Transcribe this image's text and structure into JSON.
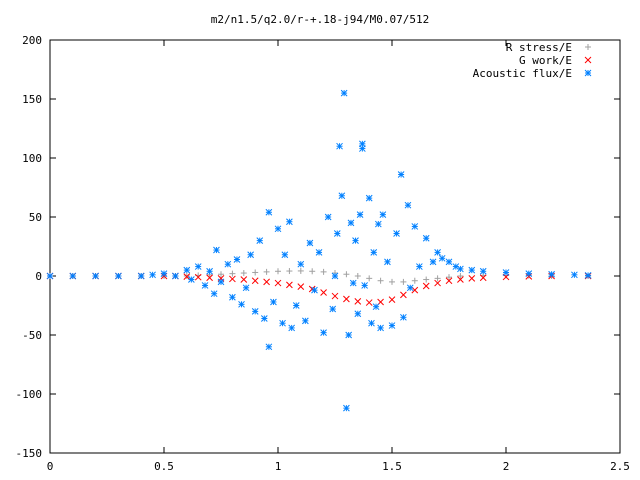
{
  "chart_data": {
    "type": "scatter",
    "title": "m2/n1.5/q2.0/r-+.18-j94/M0.07/512",
    "xlabel": "",
    "ylabel": "",
    "xlim": [
      0,
      2.5
    ],
    "ylim": [
      -150,
      200
    ],
    "xticks": [
      0,
      0.5,
      1,
      1.5,
      2,
      2.5
    ],
    "yticks": [
      -150,
      -100,
      -50,
      0,
      50,
      100,
      150,
      200
    ],
    "xtick_labels": [
      "0",
      "0.5",
      "1",
      "1.5",
      "2",
      "2.5"
    ],
    "ytick_labels": [
      "-150",
      "-100",
      "-50",
      "0",
      "50",
      "100",
      "150",
      "200"
    ],
    "grid": false,
    "legend_position": "top-right",
    "series": [
      {
        "name": "R stress/E",
        "marker": "+",
        "color": "#a0a0a0",
        "points": [
          [
            0.0,
            0
          ],
          [
            0.1,
            0
          ],
          [
            0.2,
            0
          ],
          [
            0.3,
            0
          ],
          [
            0.4,
            0
          ],
          [
            0.5,
            0
          ],
          [
            0.55,
            0
          ],
          [
            0.6,
            0
          ],
          [
            0.65,
            0.5
          ],
          [
            0.7,
            1
          ],
          [
            0.75,
            1.5
          ],
          [
            0.8,
            2
          ],
          [
            0.85,
            2.5
          ],
          [
            0.9,
            3
          ],
          [
            0.95,
            3.5
          ],
          [
            1.0,
            4
          ],
          [
            1.05,
            4.2
          ],
          [
            1.1,
            4.3
          ],
          [
            1.15,
            4
          ],
          [
            1.2,
            3.5
          ],
          [
            1.25,
            2.5
          ],
          [
            1.3,
            1.5
          ],
          [
            1.35,
            0
          ],
          [
            1.4,
            -2
          ],
          [
            1.45,
            -4
          ],
          [
            1.5,
            -5
          ],
          [
            1.55,
            -5
          ],
          [
            1.6,
            -4
          ],
          [
            1.65,
            -3
          ],
          [
            1.7,
            -2
          ],
          [
            1.75,
            -1
          ],
          [
            1.8,
            0
          ],
          [
            1.9,
            0.5
          ],
          [
            2.0,
            0.5
          ],
          [
            2.1,
            0.3
          ],
          [
            2.2,
            0
          ],
          [
            2.36,
            0
          ]
        ]
      },
      {
        "name": "G work/E",
        "marker": "x",
        "color": "#ff0000",
        "points": [
          [
            0.0,
            0
          ],
          [
            0.1,
            0
          ],
          [
            0.2,
            0
          ],
          [
            0.3,
            0
          ],
          [
            0.4,
            0
          ],
          [
            0.5,
            0
          ],
          [
            0.55,
            0
          ],
          [
            0.6,
            -0.5
          ],
          [
            0.65,
            -1
          ],
          [
            0.7,
            -1.5
          ],
          [
            0.75,
            -2
          ],
          [
            0.8,
            -2.5
          ],
          [
            0.85,
            -3
          ],
          [
            0.9,
            -4
          ],
          [
            0.95,
            -5
          ],
          [
            1.0,
            -6
          ],
          [
            1.05,
            -7.5
          ],
          [
            1.1,
            -9
          ],
          [
            1.15,
            -11
          ],
          [
            1.2,
            -14
          ],
          [
            1.25,
            -17
          ],
          [
            1.3,
            -19.5
          ],
          [
            1.35,
            -21.5
          ],
          [
            1.4,
            -22.5
          ],
          [
            1.45,
            -22
          ],
          [
            1.5,
            -20
          ],
          [
            1.55,
            -16
          ],
          [
            1.6,
            -12
          ],
          [
            1.65,
            -8.5
          ],
          [
            1.7,
            -6
          ],
          [
            1.75,
            -4
          ],
          [
            1.8,
            -3
          ],
          [
            1.85,
            -2
          ],
          [
            1.9,
            -1.5
          ],
          [
            2.0,
            -0.8
          ],
          [
            2.1,
            -0.3
          ],
          [
            2.2,
            0
          ],
          [
            2.36,
            0
          ]
        ]
      },
      {
        "name": "Acoustic flux/E",
        "marker": "*",
        "color": "#0080ff",
        "points": [
          [
            0.0,
            0
          ],
          [
            0.1,
            0
          ],
          [
            0.2,
            0
          ],
          [
            0.3,
            0
          ],
          [
            0.4,
            0
          ],
          [
            0.45,
            1
          ],
          [
            0.5,
            2
          ],
          [
            0.55,
            0
          ],
          [
            0.6,
            5
          ],
          [
            0.62,
            -3
          ],
          [
            0.65,
            8
          ],
          [
            0.68,
            -8
          ],
          [
            0.7,
            4
          ],
          [
            0.72,
            -15
          ],
          [
            0.73,
            22
          ],
          [
            0.75,
            -5
          ],
          [
            0.78,
            10
          ],
          [
            0.8,
            -18
          ],
          [
            0.82,
            14
          ],
          [
            0.84,
            -24
          ],
          [
            0.86,
            -10
          ],
          [
            0.88,
            18
          ],
          [
            0.9,
            -30
          ],
          [
            0.92,
            30
          ],
          [
            0.94,
            -36
          ],
          [
            0.96,
            -60
          ],
          [
            0.96,
            54
          ],
          [
            0.98,
            -22
          ],
          [
            1.0,
            40
          ],
          [
            1.02,
            -40
          ],
          [
            1.03,
            18
          ],
          [
            1.05,
            46
          ],
          [
            1.06,
            -44
          ],
          [
            1.08,
            -25
          ],
          [
            1.1,
            10
          ],
          [
            1.12,
            -38
          ],
          [
            1.14,
            28
          ],
          [
            1.16,
            -12
          ],
          [
            1.18,
            20
          ],
          [
            1.2,
            -48
          ],
          [
            1.22,
            50
          ],
          [
            1.24,
            -28
          ],
          [
            1.25,
            0
          ],
          [
            1.26,
            36
          ],
          [
            1.27,
            110
          ],
          [
            1.28,
            68
          ],
          [
            1.29,
            155
          ],
          [
            1.3,
            -112
          ],
          [
            1.31,
            -50
          ],
          [
            1.32,
            45
          ],
          [
            1.33,
            -6
          ],
          [
            1.34,
            30
          ],
          [
            1.35,
            -32
          ],
          [
            1.36,
            52
          ],
          [
            1.37,
            112
          ],
          [
            1.37,
            108
          ],
          [
            1.38,
            -8
          ],
          [
            1.4,
            66
          ],
          [
            1.41,
            -40
          ],
          [
            1.42,
            20
          ],
          [
            1.43,
            -26
          ],
          [
            1.44,
            44
          ],
          [
            1.45,
            -44
          ],
          [
            1.46,
            52
          ],
          [
            1.48,
            12
          ],
          [
            1.5,
            -42
          ],
          [
            1.52,
            36
          ],
          [
            1.54,
            86
          ],
          [
            1.55,
            -35
          ],
          [
            1.57,
            60
          ],
          [
            1.58,
            -10
          ],
          [
            1.6,
            42
          ],
          [
            1.62,
            8
          ],
          [
            1.65,
            32
          ],
          [
            1.68,
            12
          ],
          [
            1.7,
            20
          ],
          [
            1.72,
            15
          ],
          [
            1.75,
            12
          ],
          [
            1.78,
            8
          ],
          [
            1.8,
            6
          ],
          [
            1.85,
            5
          ],
          [
            1.9,
            4
          ],
          [
            2.0,
            3
          ],
          [
            2.1,
            2
          ],
          [
            2.2,
            1.5
          ],
          [
            2.3,
            1
          ],
          [
            2.36,
            0.5
          ]
        ]
      }
    ]
  }
}
